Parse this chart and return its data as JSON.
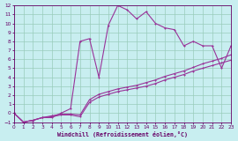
{
  "bg_color": "#c8eef0",
  "line_color": "#993399",
  "grid_color": "#99ccbb",
  "xlabel": "Windchill (Refroidissement éolien,°C)",
  "xlabel_color": "#660066",
  "tick_color": "#660066",
  "xmin": 0,
  "xmax": 23,
  "ymin": -1,
  "ymax": 12,
  "xticks": [
    0,
    1,
    2,
    3,
    4,
    5,
    6,
    7,
    8,
    9,
    10,
    11,
    12,
    13,
    14,
    15,
    16,
    17,
    18,
    19,
    20,
    21,
    22,
    23
  ],
  "yticks": [
    -1,
    0,
    1,
    2,
    3,
    4,
    5,
    6,
    7,
    8,
    9,
    10,
    11,
    12
  ],
  "main_x": [
    0,
    1,
    2,
    3,
    4,
    5,
    6,
    7,
    8,
    9,
    10,
    11,
    12,
    13,
    14,
    15,
    16,
    17,
    18,
    19,
    20,
    21,
    22,
    23
  ],
  "main_y": [
    0,
    -1,
    -0.8,
    -0.5,
    -0.5,
    0.0,
    0.5,
    8.0,
    8.3,
    4.0,
    9.8,
    12.0,
    11.5,
    10.5,
    11.3,
    10.0,
    9.5,
    9.3,
    7.5,
    8.0,
    7.5,
    7.5,
    5.0,
    7.5
  ],
  "reg1_x": [
    0,
    1,
    2,
    3,
    4,
    5,
    6,
    7,
    8,
    9,
    10,
    11,
    12,
    13,
    14,
    15,
    16,
    17,
    18,
    19,
    20,
    21,
    22,
    23
  ],
  "reg1_y": [
    0,
    -1,
    -0.8,
    -0.5,
    -0.4,
    -0.2,
    -0.2,
    -0.4,
    1.2,
    1.8,
    2.1,
    2.4,
    2.6,
    2.8,
    3.0,
    3.3,
    3.7,
    4.0,
    4.3,
    4.7,
    5.0,
    5.3,
    5.6,
    5.9
  ],
  "reg2_x": [
    0,
    1,
    2,
    3,
    4,
    5,
    6,
    7,
    8,
    9,
    10,
    11,
    12,
    13,
    14,
    15,
    16,
    17,
    18,
    19,
    20,
    21,
    22,
    23
  ],
  "reg2_y": [
    0,
    -1,
    -0.8,
    -0.5,
    -0.3,
    -0.1,
    -0.1,
    -0.2,
    1.5,
    2.1,
    2.4,
    2.7,
    2.9,
    3.1,
    3.4,
    3.7,
    4.1,
    4.4,
    4.7,
    5.1,
    5.5,
    5.8,
    6.1,
    6.5
  ]
}
